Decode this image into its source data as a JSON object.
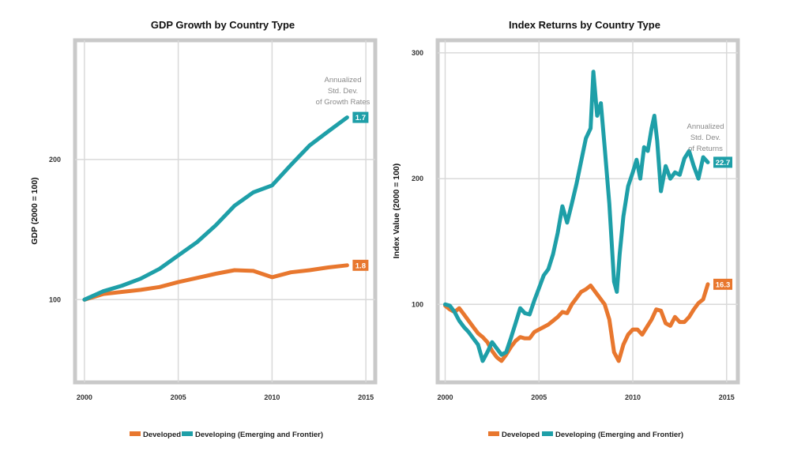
{
  "colors": {
    "developed": "#e8772e",
    "developing": "#1e9fa8",
    "grid": "#d9d9d9",
    "frame": "#c9c9c9"
  },
  "chart_data": [
    {
      "type": "line",
      "title": "GDP Growth by Country Type",
      "xlabel": "",
      "ylabel": "GDP (2000 = 100)",
      "xlim": [
        1999.5,
        2015.5
      ],
      "ylim": [
        41,
        285
      ],
      "xticks": [
        2000,
        2005,
        2010,
        2015
      ],
      "yticks": [
        100,
        200
      ],
      "note": [
        "Annualized",
        "Std. Dev.",
        "of Growth Rates"
      ],
      "series": [
        {
          "name": "Developed",
          "key": "developed",
          "badge": "1.8",
          "x": [
            2000,
            2001,
            2002,
            2003,
            2004,
            2005,
            2006,
            2007,
            2008,
            2009,
            2010,
            2011,
            2012,
            2013,
            2014
          ],
          "y": [
            100,
            104,
            105.5,
            107,
            109,
            112.5,
            115.5,
            118.5,
            121,
            120.5,
            116,
            119.5,
            121,
            123,
            124.5
          ]
        },
        {
          "name": "Developing (Emerging and Frontier)",
          "key": "developing",
          "badge": "1.7",
          "x": [
            2000,
            2001,
            2002,
            2003,
            2004,
            2005,
            2006,
            2007,
            2008,
            2009,
            2010,
            2011,
            2012,
            2013,
            2014
          ],
          "y": [
            100,
            106,
            110,
            115,
            122,
            131.5,
            141,
            153,
            167,
            176.5,
            181.5,
            196,
            210,
            220,
            230
          ]
        }
      ],
      "legend": [
        "Developed",
        "Developing (Emerging and Frontier)"
      ]
    },
    {
      "type": "line",
      "title": "Index Returns by Country Type",
      "xlabel": "",
      "ylabel": "Index Value (2000 = 100)",
      "xlim": [
        1999.6,
        2015.6
      ],
      "ylim": [
        38,
        310
      ],
      "xticks": [
        2000,
        2005,
        2010,
        2015
      ],
      "yticks": [
        100,
        200,
        300
      ],
      "note": [
        "Annualized",
        "Std. Dev.",
        "of Returns"
      ],
      "series": [
        {
          "name": "Developed",
          "key": "developed",
          "badge": "16.3",
          "x": [
            2000,
            2000.25,
            2000.5,
            2000.75,
            2001,
            2001.25,
            2001.5,
            2001.75,
            2002,
            2002.25,
            2002.5,
            2002.75,
            2003,
            2003.25,
            2003.5,
            2003.75,
            2004,
            2004.25,
            2004.5,
            2004.75,
            2005,
            2005.25,
            2005.5,
            2005.75,
            2006,
            2006.25,
            2006.5,
            2006.75,
            2007,
            2007.25,
            2007.5,
            2007.75,
            2008,
            2008.25,
            2008.5,
            2008.75,
            2009,
            2009.25,
            2009.5,
            2009.75,
            2010,
            2010.25,
            2010.5,
            2010.75,
            2011,
            2011.25,
            2011.5,
            2011.75,
            2012,
            2012.25,
            2012.5,
            2012.75,
            2013,
            2013.25,
            2013.5,
            2013.75,
            2014
          ],
          "y": [
            99,
            96,
            94,
            97,
            92,
            87,
            82,
            77,
            74,
            70,
            63,
            58,
            55,
            60,
            66,
            71,
            74,
            73,
            73,
            78,
            80,
            82,
            84,
            87,
            90,
            94,
            93,
            100,
            105,
            110,
            112,
            115,
            110,
            105,
            100,
            88,
            62,
            55,
            68,
            76,
            80,
            80,
            76,
            82,
            88,
            96,
            95,
            85,
            83,
            90,
            86,
            86,
            90,
            96,
            101,
            104,
            116
          ]
        },
        {
          "name": "Developing (Emerging and Frontier)",
          "key": "developing",
          "badge": "22.7",
          "x": [
            2000,
            2000.25,
            2000.5,
            2000.75,
            2001,
            2001.25,
            2001.5,
            2001.75,
            2002,
            2002.25,
            2002.5,
            2002.75,
            2003,
            2003.25,
            2003.5,
            2003.75,
            2004,
            2004.25,
            2004.5,
            2004.75,
            2005,
            2005.25,
            2005.5,
            2005.75,
            2006,
            2006.25,
            2006.5,
            2006.75,
            2007,
            2007.25,
            2007.5,
            2007.75,
            2007.9,
            2008.1,
            2008.3,
            2008.5,
            2008.75,
            2009,
            2009.15,
            2009.3,
            2009.5,
            2009.75,
            2010,
            2010.2,
            2010.4,
            2010.6,
            2010.8,
            2011,
            2011.15,
            2011.3,
            2011.5,
            2011.75,
            2012,
            2012.25,
            2012.5,
            2012.75,
            2013,
            2013.25,
            2013.5,
            2013.75,
            2014
          ],
          "y": [
            100,
            99,
            94,
            87,
            82,
            78,
            73,
            68,
            55,
            62,
            70,
            65,
            60,
            62,
            73,
            85,
            97,
            93,
            92,
            103,
            113,
            123,
            128,
            140,
            157,
            178,
            165,
            180,
            196,
            214,
            232,
            240,
            285,
            250,
            260,
            225,
            180,
            118,
            110,
            140,
            170,
            194,
            205,
            215,
            200,
            225,
            222,
            240,
            250,
            230,
            190,
            210,
            200,
            205,
            203,
            216,
            222,
            210,
            200,
            217,
            213
          ]
        }
      ],
      "legend": [
        "Developed",
        "Developing (Emerging and Frontier)"
      ]
    }
  ]
}
